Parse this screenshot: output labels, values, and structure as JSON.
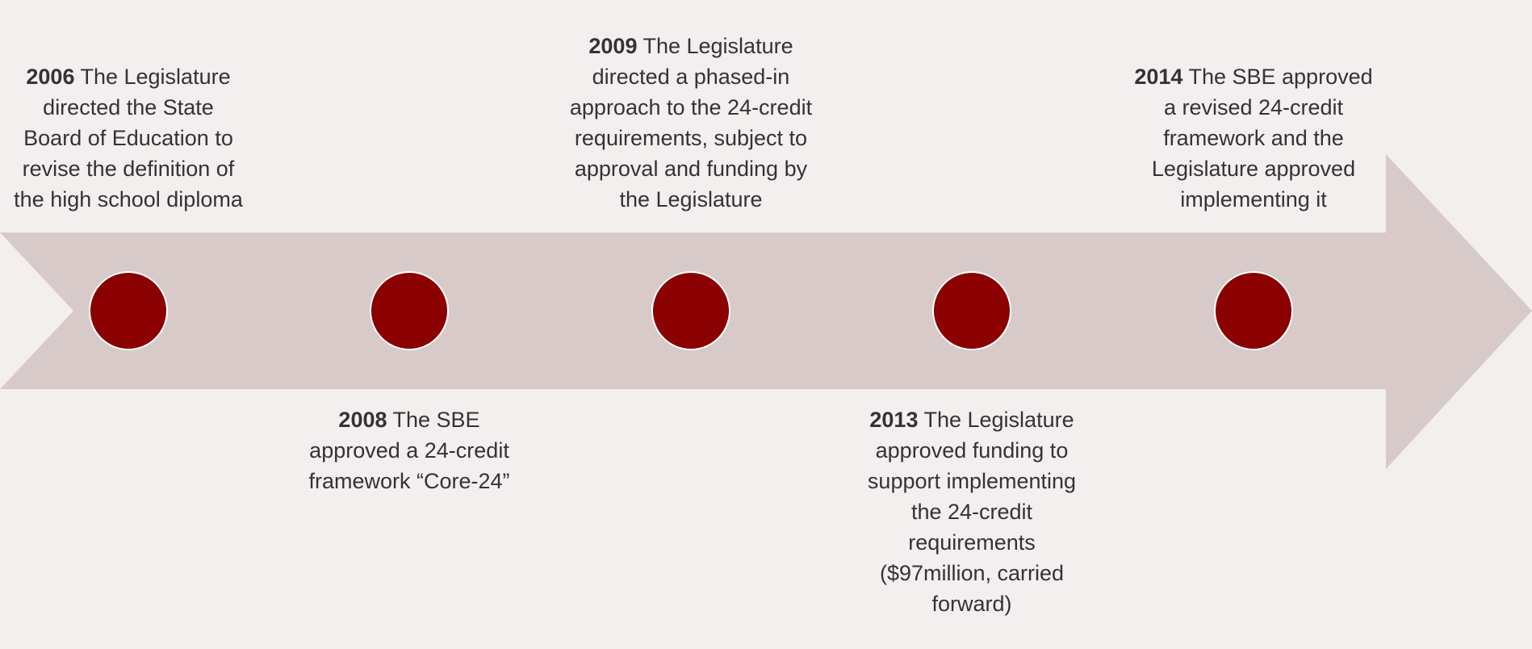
{
  "events": [
    {
      "year": "2006",
      "text": "The Legislature directed the State Board of Education to revise the definition of the high school diploma"
    },
    {
      "year": "2008",
      "text": "The SBE approved a 24-credit framework “Core-24”"
    },
    {
      "year": "2009",
      "text": "The Legislature directed a phased-in approach to the 24-credit requirements, subject to approval and funding by the Legislature"
    },
    {
      "year": "2013",
      "text": "The Legislature approved funding to support implementing the 24-credit requirements ($97million, carried forward)"
    },
    {
      "year": "2014",
      "text": "The SBE approved a revised 24-credit framework and the Legislature approved implementing it"
    }
  ]
}
